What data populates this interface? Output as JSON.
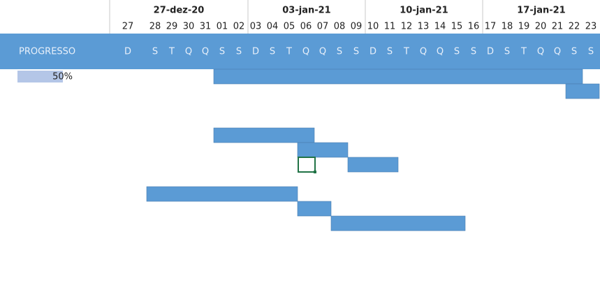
{
  "header": {
    "progress_label": "PROGRESSO",
    "weeks": [
      "27-dez-20",
      "03-jan-21",
      "10-jan-21",
      "17-jan-21"
    ],
    "days": [
      "27",
      "28",
      "29",
      "30",
      "31",
      "01",
      "02",
      "03",
      "04",
      "05",
      "06",
      "07",
      "08",
      "09",
      "10",
      "11",
      "12",
      "13",
      "14",
      "15",
      "16",
      "17",
      "18",
      "19",
      "20",
      "21",
      "22",
      "23"
    ],
    "weekdays": [
      "D",
      "S",
      "T",
      "Q",
      "Q",
      "S",
      "S",
      "D",
      "S",
      "T",
      "Q",
      "Q",
      "S",
      "S",
      "D",
      "S",
      "T",
      "Q",
      "Q",
      "S",
      "S",
      "D",
      "S",
      "T",
      "Q",
      "Q",
      "S",
      "S"
    ]
  },
  "rows": [
    {
      "progress": {
        "value": 50,
        "label": "50%"
      },
      "start": "01",
      "end": "22"
    },
    {
      "start": "22",
      "end": "23"
    },
    null,
    null,
    {
      "start": "01",
      "end": "06"
    },
    {
      "start": "06",
      "end": "08"
    },
    {
      "start": "09",
      "end": "11"
    },
    null,
    {
      "start": "28",
      "end": "05"
    },
    {
      "start": "06",
      "end": "07"
    },
    {
      "start": "08",
      "end": "15"
    }
  ]
}
